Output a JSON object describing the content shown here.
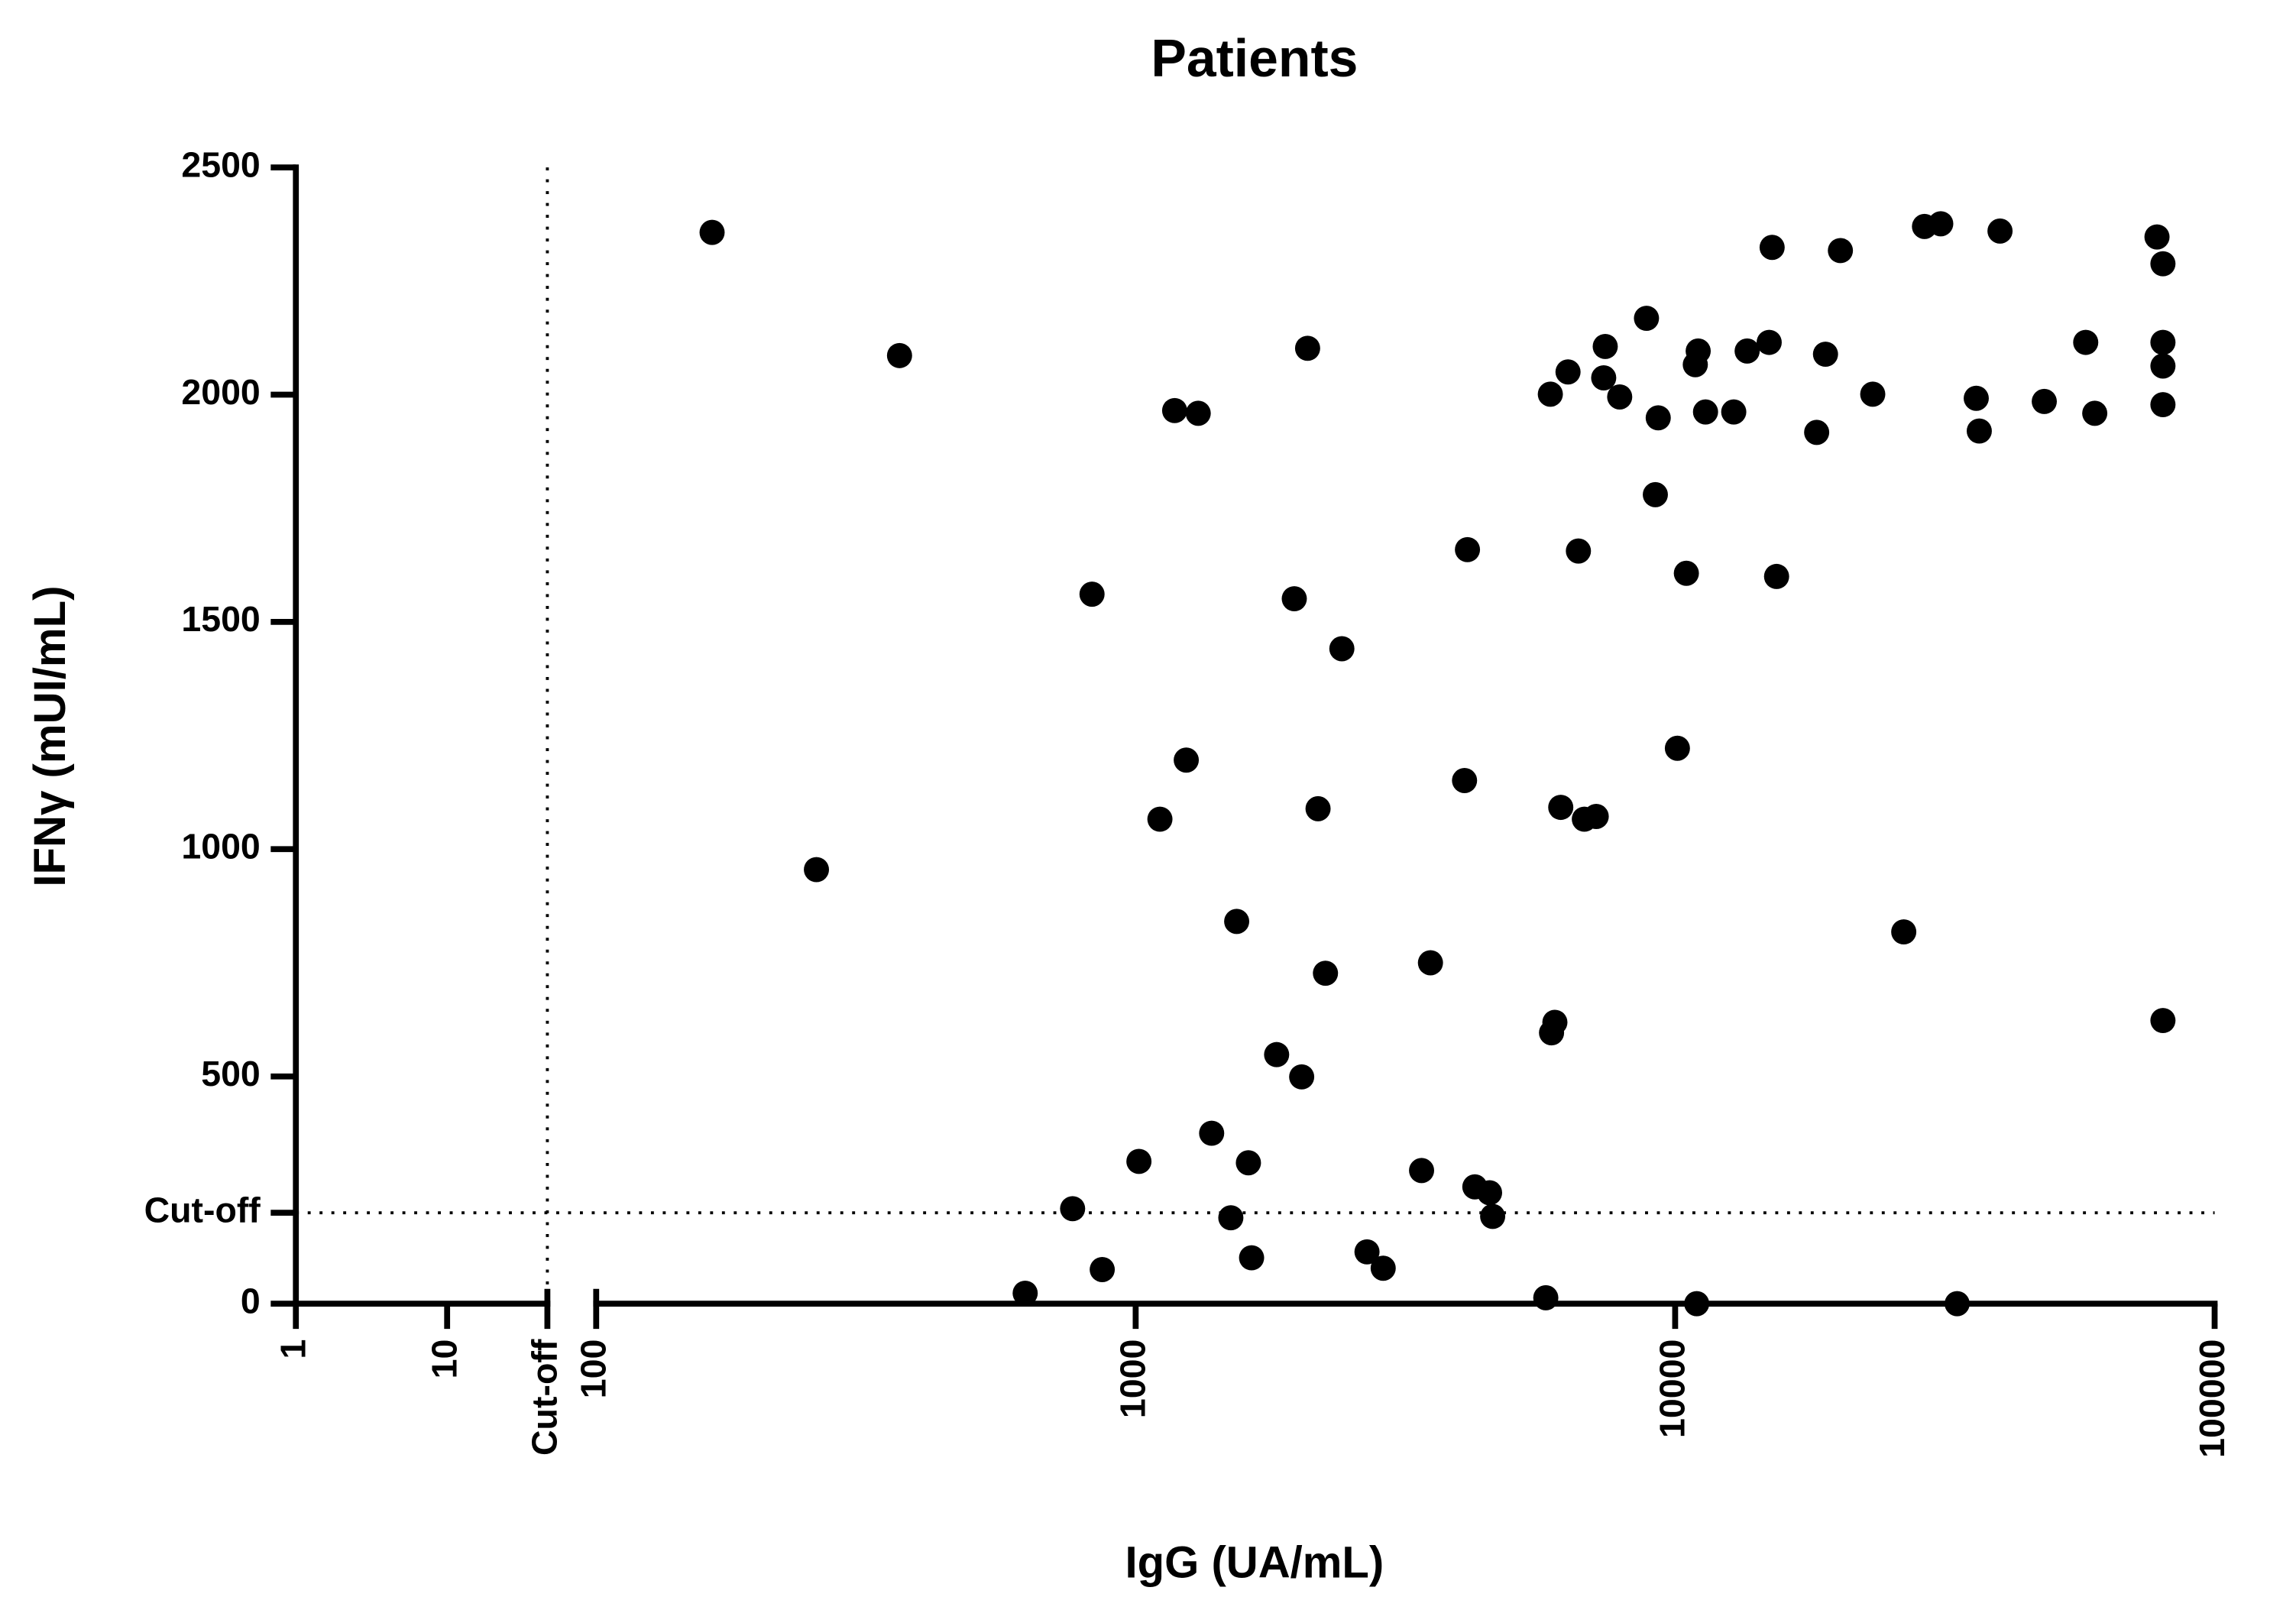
{
  "chart_data": {
    "type": "scatter",
    "title": "Patients",
    "xlabel": "IgG (UA/mL)",
    "ylabel": "IFNγ (mUI/mL)",
    "xscale": "log",
    "x_segments": [
      {
        "xlim": [
          1,
          46
        ],
        "xticks": [
          1,
          10,
          {
            "value": 46,
            "label": "Cut-off"
          }
        ]
      },
      {
        "xlim": [
          100,
          100000
        ],
        "xticks": [
          100,
          1000,
          10000,
          100000
        ]
      }
    ],
    "ylim": [
      0,
      2500
    ],
    "yticks": [
      0,
      {
        "value": 200,
        "label": "Cut-off"
      },
      500,
      1000,
      1500,
      2000,
      2500
    ],
    "cutoff_lines": {
      "x": 46,
      "y": 200
    },
    "color": "#000000",
    "x": [
      164,
      365,
      256,
      624,
      764,
      867,
      830,
      1014,
      1109,
      1181,
      1241,
      1306,
      1383,
      1501,
      1539,
      1618,
      1640,
      1825,
      1968,
      2031,
      2083,
      2178,
      2248,
      2411,
      2684,
      2876,
      3388,
      3519,
      4070,
      4121,
      4253,
      4529,
      4589,
      5757,
      5870,
      5985,
      5900,
      6137,
      6330,
      6617,
      6787,
      7140,
      7371,
      7420,
      7892,
      8848,
      9189,
      9303,
      10096,
      10490,
      10898,
      10964,
      11033,
      11384,
      12841,
      13597,
      14938,
      15127,
      15417,
      18294,
      18997,
      20244,
      23241,
      26530,
      28985,
      31067,
      33320,
      36150,
      36620,
      40010,
      48330,
      57680,
      59950,
      78190,
      80200,
      80200,
      80200,
      80200,
      80200
    ],
    "values": [
      2357,
      2086,
      955,
      23,
      209,
      75,
      1561,
      313,
      1066,
      1965,
      1196,
      1959,
      375,
      189,
      841,
      310,
      101,
      548,
      1551,
      499,
      2102,
      1089,
      727,
      1441,
      114,
      78,
      293,
      750,
      1151,
      1659,
      257,
      244,
      192,
      13,
      2001,
      619,
      596,
      1092,
      2050,
      1656,
      1066,
      1072,
      2037,
      2106,
      1995,
      2168,
      1780,
      1949,
      1222,
      1607,
      2066,
      0,
      2096,
      1962,
      1962,
      2096,
      2115,
      2324,
      1600,
      1917,
      2089,
      2317,
      2001,
      818,
      2370,
      2376,
      0,
      1992,
      1920,
      2360,
      1985,
      2115,
      1959,
      2347,
      2288,
      2115,
      2063,
      1978,
      623
    ]
  }
}
